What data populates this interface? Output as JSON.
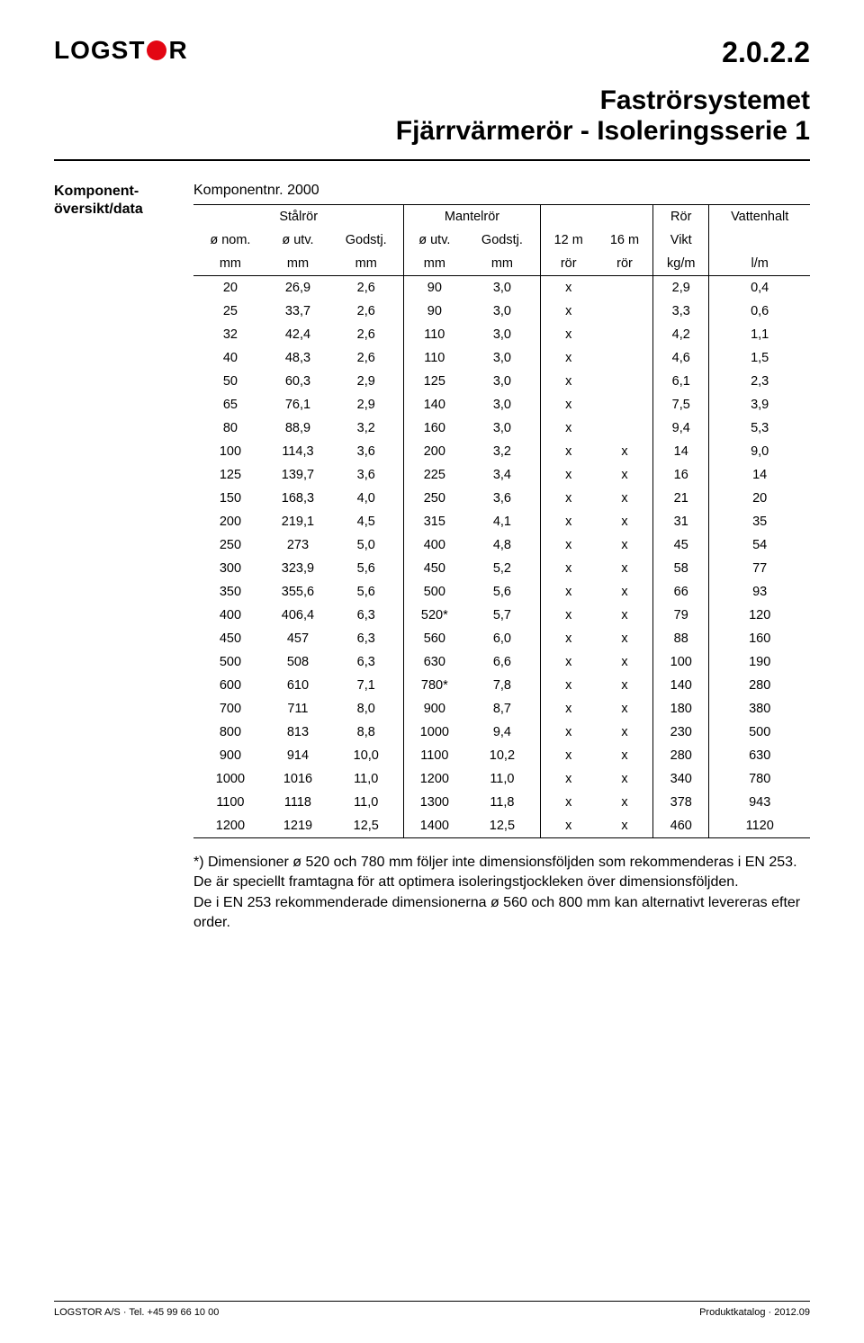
{
  "logo": {
    "part1": "LOGST",
    "part2": "R",
    "dot_color": "#e30613"
  },
  "section_number": "2.0.2.2",
  "title_line1": "Faströrsystemet",
  "title_line2": "Fjärrvärmerör - Isoleringsserie 1",
  "left_label_line1": "Komponent-",
  "left_label_line2": "översikt/data",
  "subtitle": "Komponentnr. 2000",
  "table": {
    "group_headers": [
      "Stålrör",
      "Mantelrör",
      "Rör",
      "Vattenhalt"
    ],
    "sub_headers_row1": [
      "ø nom.",
      "ø utv.",
      "Godstj.",
      "ø utv.",
      "Godstj.",
      "12 m",
      "16 m",
      "Vikt",
      ""
    ],
    "sub_headers_row2": [
      "mm",
      "mm",
      "mm",
      "mm",
      "mm",
      "rör",
      "rör",
      "kg/m",
      "l/m"
    ],
    "col_align": [
      "center",
      "center",
      "center",
      "center",
      "center",
      "center",
      "center",
      "center",
      "center"
    ],
    "rows": [
      [
        "20",
        "26,9",
        "2,6",
        "90",
        "3,0",
        "x",
        "",
        "2,9",
        "0,4"
      ],
      [
        "25",
        "33,7",
        "2,6",
        "90",
        "3,0",
        "x",
        "",
        "3,3",
        "0,6"
      ],
      [
        "32",
        "42,4",
        "2,6",
        "110",
        "3,0",
        "x",
        "",
        "4,2",
        "1,1"
      ],
      [
        "40",
        "48,3",
        "2,6",
        "110",
        "3,0",
        "x",
        "",
        "4,6",
        "1,5"
      ],
      [
        "50",
        "60,3",
        "2,9",
        "125",
        "3,0",
        "x",
        "",
        "6,1",
        "2,3"
      ],
      [
        "65",
        "76,1",
        "2,9",
        "140",
        "3,0",
        "x",
        "",
        "7,5",
        "3,9"
      ],
      [
        "80",
        "88,9",
        "3,2",
        "160",
        "3,0",
        "x",
        "",
        "9,4",
        "5,3"
      ],
      [
        "100",
        "114,3",
        "3,6",
        "200",
        "3,2",
        "x",
        "x",
        "14",
        "9,0"
      ],
      [
        "125",
        "139,7",
        "3,6",
        "225",
        "3,4",
        "x",
        "x",
        "16",
        "14"
      ],
      [
        "150",
        "168,3",
        "4,0",
        "250",
        "3,6",
        "x",
        "x",
        "21",
        "20"
      ],
      [
        "200",
        "219,1",
        "4,5",
        "315",
        "4,1",
        "x",
        "x",
        "31",
        "35"
      ],
      [
        "250",
        "273",
        "5,0",
        "400",
        "4,8",
        "x",
        "x",
        "45",
        "54"
      ],
      [
        "300",
        "323,9",
        "5,6",
        "450",
        "5,2",
        "x",
        "x",
        "58",
        "77"
      ],
      [
        "350",
        "355,6",
        "5,6",
        "500",
        "5,6",
        "x",
        "x",
        "66",
        "93"
      ],
      [
        "400",
        "406,4",
        "6,3",
        "520*",
        "5,7",
        "x",
        "x",
        "79",
        "120"
      ],
      [
        "450",
        "457",
        "6,3",
        "560",
        "6,0",
        "x",
        "x",
        "88",
        "160"
      ],
      [
        "500",
        "508",
        "6,3",
        "630",
        "6,6",
        "x",
        "x",
        "100",
        "190"
      ],
      [
        "600",
        "610",
        "7,1",
        "780*",
        "7,8",
        "x",
        "x",
        "140",
        "280"
      ],
      [
        "700",
        "711",
        "8,0",
        "900",
        "8,7",
        "x",
        "x",
        "180",
        "380"
      ],
      [
        "800",
        "813",
        "8,8",
        "1000",
        "9,4",
        "x",
        "x",
        "230",
        "500"
      ],
      [
        "900",
        "914",
        "10,0",
        "1100",
        "10,2",
        "x",
        "x",
        "280",
        "630"
      ],
      [
        "1000",
        "1016",
        "11,0",
        "1200",
        "11,0",
        "x",
        "x",
        "340",
        "780"
      ],
      [
        "1100",
        "1118",
        "11,0",
        "1300",
        "11,8",
        "x",
        "x",
        "378",
        "943"
      ],
      [
        "1200",
        "1219",
        "12,5",
        "1400",
        "12,5",
        "x",
        "x",
        "460",
        "1120"
      ]
    ]
  },
  "footnote_lines": [
    "*) Dimensioner ø 520 och 780 mm följer inte dimensionsföljden som rekommenderas i EN 253.",
    "De är speciellt framtagna för att optimera isoleringstjockleken över dimensionsföljden.",
    "De i EN 253 rekommenderade dimensionerna ø 560 och 800 mm kan alternativt levereras efter order."
  ],
  "footer_left": "LOGSTOR A/S · Tel. +45 99 66 10 00",
  "footer_right": "Produktkatalog · 2012.09"
}
